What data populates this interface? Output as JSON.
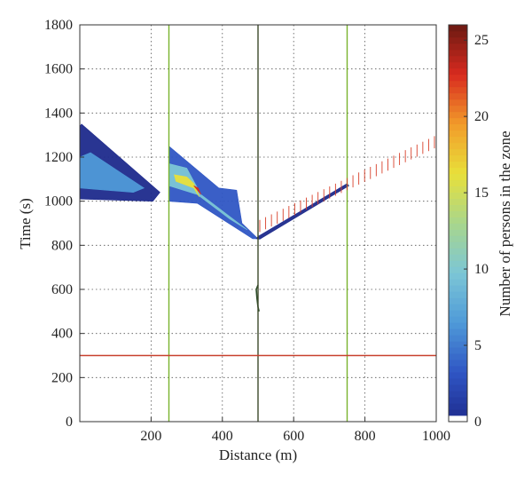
{
  "chart_data": {
    "type": "heatmap",
    "xlabel": "Distance (m)",
    "ylabel": "Time (s)",
    "colorbar_label": "Number of persons in the zone",
    "xlim": [
      0,
      1000
    ],
    "ylim": [
      0,
      1800
    ],
    "x_ticks": [
      200,
      400,
      600,
      800,
      1000
    ],
    "y_ticks": [
      0,
      200,
      400,
      600,
      800,
      1000,
      1200,
      1400,
      1600,
      1800
    ],
    "colorbar_range": [
      0,
      26
    ],
    "colorbar_ticks": [
      0,
      5,
      10,
      15,
      20,
      25
    ],
    "grid": true,
    "colormap": [
      "#ffffff",
      "#1e2a8c",
      "#2f56c4",
      "#4f9ad8",
      "#7cc6d6",
      "#a8d68c",
      "#e8e03a",
      "#f29b2a",
      "#d82a1f",
      "#6b1a12"
    ],
    "vertical_lines": [
      {
        "x": 250,
        "color": "#7ab32e"
      },
      {
        "x": 500,
        "color": "#3d4a2a"
      },
      {
        "x": 750,
        "color": "#7ab32e"
      }
    ],
    "horizontal_lines": [
      {
        "y": 300,
        "color": "#c8412e"
      }
    ],
    "density_regions": [
      {
        "region": "upstream-band",
        "polygon": [
          [
            0,
            1340
          ],
          [
            0,
            1010
          ],
          [
            205,
            1000
          ],
          [
            220,
            1030
          ],
          [
            225,
            1040
          ],
          [
            5,
            1350
          ]
        ],
        "level": 4
      },
      {
        "region": "upstream-core",
        "polygon": [
          [
            0,
            1200
          ],
          [
            0,
            1060
          ],
          [
            150,
            1040
          ],
          [
            180,
            1060
          ],
          [
            30,
            1220
          ]
        ],
        "level": 9
      },
      {
        "region": "mid-band",
        "polygon": [
          [
            250,
            1250
          ],
          [
            250,
            1000
          ],
          [
            330,
            990
          ],
          [
            485,
            830
          ],
          [
            500,
            830
          ],
          [
            455,
            900
          ],
          [
            440,
            1050
          ],
          [
            390,
            1060
          ],
          [
            250,
            1250
          ]
        ],
        "level": 5
      },
      {
        "region": "mid-core",
        "polygon": [
          [
            250,
            1170
          ],
          [
            250,
            1070
          ],
          [
            330,
            1030
          ],
          [
            420,
            920
          ],
          [
            470,
            870
          ],
          [
            340,
            1030
          ],
          [
            300,
            1150
          ]
        ],
        "level": 11
      },
      {
        "region": "mid-hot",
        "polygon": [
          [
            265,
            1120
          ],
          [
            270,
            1090
          ],
          [
            320,
            1060
          ],
          [
            335,
            1020
          ],
          [
            320,
            1080
          ],
          [
            300,
            1110
          ]
        ],
        "level": 17
      },
      {
        "region": "mid-peak",
        "polygon": [
          [
            320,
            1070
          ],
          [
            330,
            1050
          ],
          [
            340,
            1030
          ],
          [
            332,
            1060
          ]
        ],
        "level": 23
      },
      {
        "region": "return-band",
        "polygon": [
          [
            495,
            830
          ],
          [
            500,
            840
          ],
          [
            750,
            1080
          ],
          [
            755,
            1070
          ],
          [
            505,
            828
          ]
        ],
        "level": 3
      }
    ],
    "red_tail": {
      "x_start": 505,
      "x_end": 995,
      "y_start": 860,
      "y_end": 1240,
      "tick_height": 55,
      "count": 31
    },
    "small_trace": [
      [
        500,
        620
      ],
      [
        495,
        600
      ],
      [
        497,
        560
      ],
      [
        500,
        520
      ],
      [
        503,
        500
      ]
    ]
  }
}
